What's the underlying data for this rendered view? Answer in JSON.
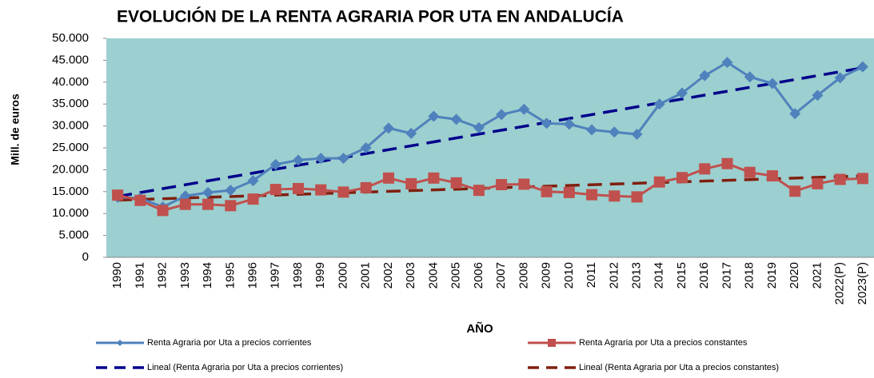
{
  "chart_data": {
    "type": "line",
    "title": "EVOLUCIÓN DE LA RENTA AGRARIA POR UTA EN ANDALUCÍA",
    "y_label": "Mill. de euros",
    "x_label": "AÑO",
    "categories": [
      "1990",
      "1991",
      "1992",
      "1993",
      "1994",
      "1995",
      "1996",
      "1997",
      "1998",
      "1999",
      "2000",
      "2001",
      "2002",
      "2003",
      "2004",
      "2005",
      "2006",
      "2007",
      "2008",
      "2009",
      "2010",
      "2011",
      "2012",
      "2013",
      "2014",
      "2015",
      "2016",
      "2017",
      "2018",
      "2019",
      "2020",
      "2021",
      "2022(P)",
      "2023(P)"
    ],
    "series": [
      {
        "name": "Renta Agraria por Uta a precios corrientes",
        "color": "#4f81bd",
        "marker": "diamond",
        "values": [
          13700,
          13500,
          11500,
          14000,
          14800,
          15300,
          17500,
          21200,
          22200,
          22600,
          22600,
          25000,
          29500,
          28300,
          32200,
          31500,
          29600,
          32600,
          33800,
          30600,
          30400,
          29100,
          28600,
          28100,
          35000,
          37500,
          41500,
          44500,
          41200,
          39700,
          32800,
          37000,
          41000,
          43500
        ]
      },
      {
        "name": "Renta Agraria por Uta a precios constantes",
        "color": "#c0504d",
        "marker": "square",
        "values": [
          14200,
          13000,
          10700,
          12100,
          12100,
          11800,
          13300,
          15500,
          15700,
          15400,
          14900,
          15900,
          18100,
          16800,
          18100,
          17000,
          15300,
          16600,
          16700,
          15000,
          14800,
          14300,
          14000,
          13800,
          17200,
          18200,
          20200,
          21400,
          19400,
          18600,
          15100,
          16800,
          17800,
          18000
        ]
      }
    ],
    "trendlines": [
      {
        "name": "Lineal (Renta Agraria por Uta a precios corrientes)",
        "color": "#00008b",
        "series": 0
      },
      {
        "name": "Lineal (Renta Agraria por Uta a precios constantes)",
        "color": "#7f1f0f",
        "series": 1
      }
    ],
    "ylim": [
      0,
      50000
    ],
    "yticks": [
      0,
      {
        "value": 5000,
        "label": "5.000"
      },
      {
        "value": 10000,
        "label": "10.000"
      },
      {
        "value": 15000,
        "label": "15.000"
      },
      {
        "value": 20000,
        "label": "20.000"
      },
      {
        "value": 25000,
        "label": "25.000"
      },
      {
        "value": 30000,
        "label": "30.000"
      },
      {
        "value": 35000,
        "label": "35.000"
      },
      {
        "value": 40000,
        "label": "40.000"
      },
      {
        "value": 45000,
        "label": "45.000"
      },
      {
        "value": 50000,
        "label": "50.000"
      }
    ],
    "plot_background": "#9ccfcf"
  }
}
